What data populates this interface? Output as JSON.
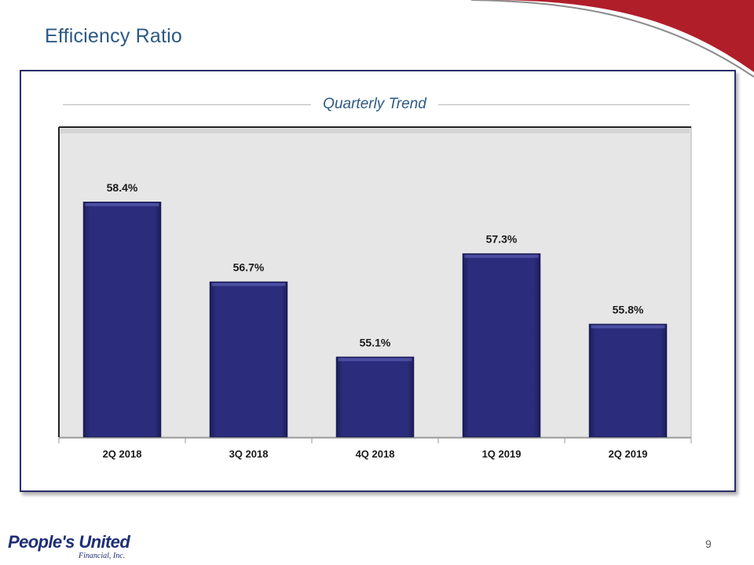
{
  "page": {
    "title": "Efficiency Ratio",
    "page_number": "9"
  },
  "panel": {
    "heading": "Quarterly Trend"
  },
  "logo": {
    "name": "People's United",
    "sub": "Financial, Inc."
  },
  "colors": {
    "title": "#2c5a84",
    "bar_fill": "#2b2d7c",
    "bar_edge": "#1a1c55",
    "plot_bg": "#e6e6e6",
    "accent_red": "#b01e2a"
  },
  "chart_data": {
    "type": "bar",
    "title": "Quarterly Trend",
    "categories": [
      "2Q 2018",
      "3Q 2018",
      "4Q 2018",
      "1Q 2019",
      "2Q 2019"
    ],
    "values": [
      58.4,
      56.7,
      55.1,
      57.3,
      55.8
    ],
    "data_labels": [
      "58.4%",
      "56.7%",
      "55.1%",
      "57.3%",
      "55.8%"
    ],
    "value_format": "percent",
    "axis_min_implied": 53.4,
    "xlabel": "",
    "ylabel": "",
    "grid": false,
    "legend": "none"
  }
}
